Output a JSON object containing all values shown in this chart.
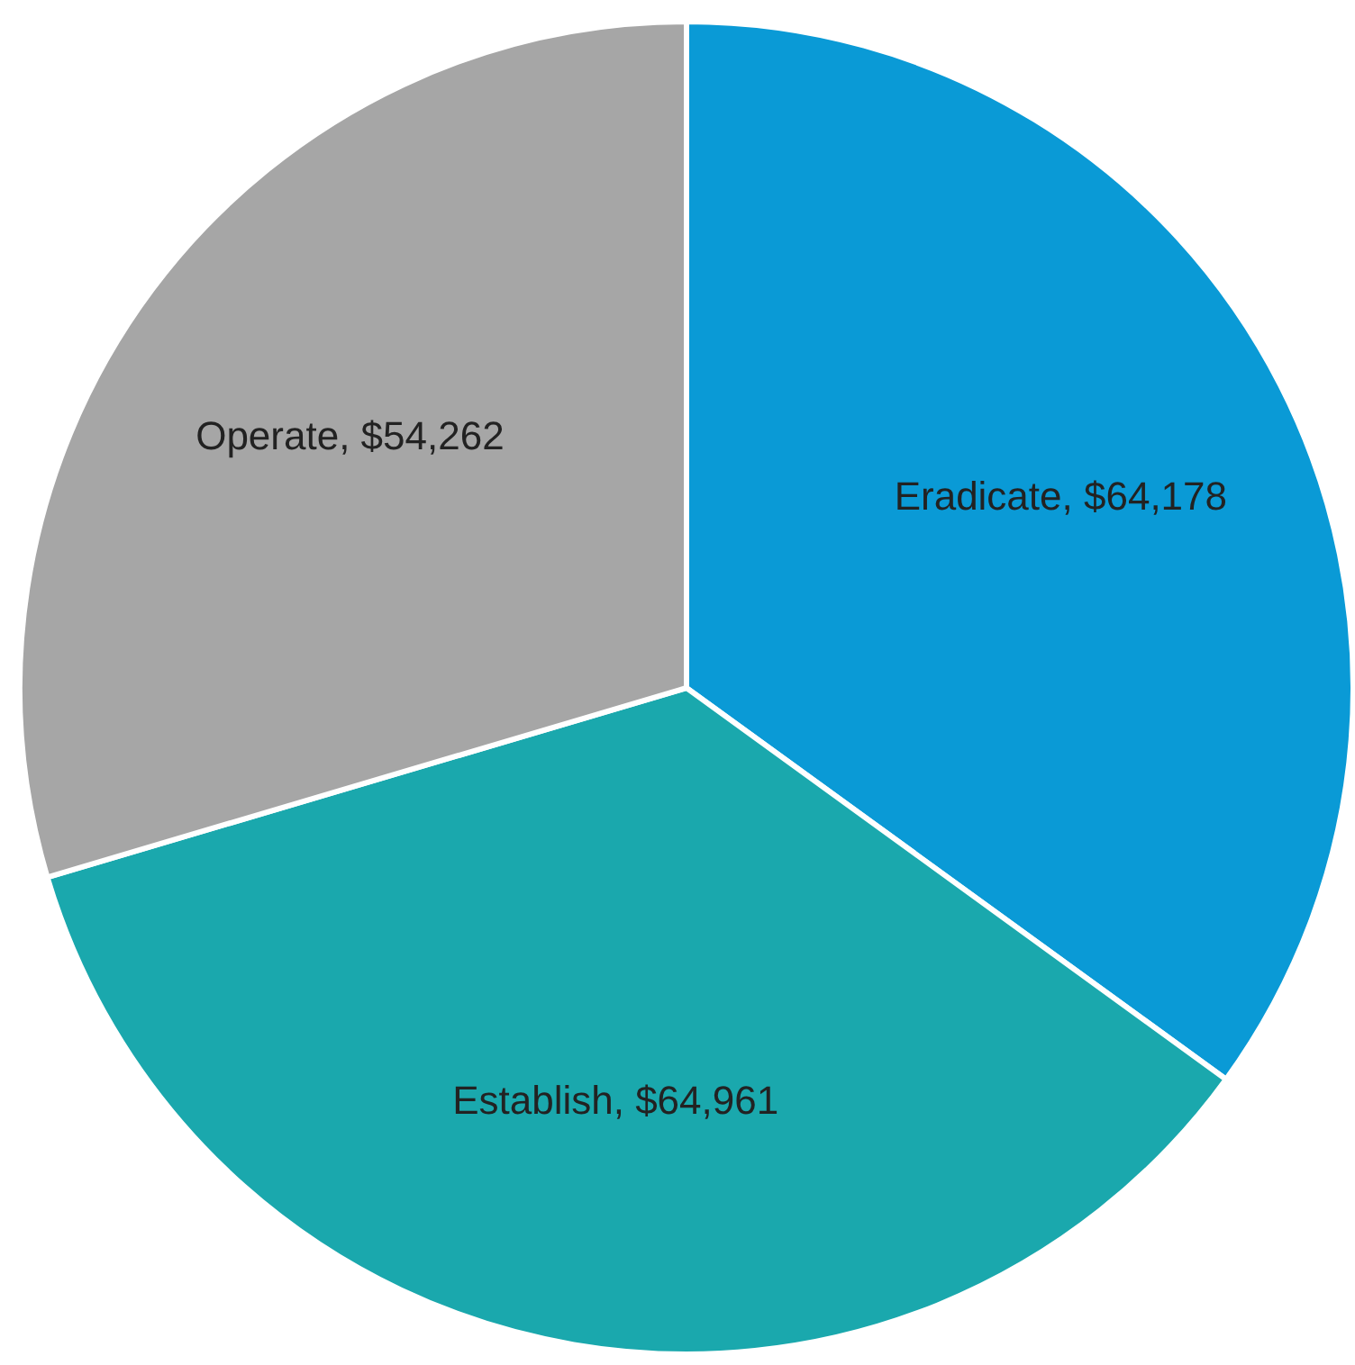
{
  "chart_data": {
    "type": "pie",
    "categories": [
      "Eradicate",
      "Establish",
      "Operate"
    ],
    "values": [
      64178,
      64961,
      54262
    ],
    "colors": [
      "#0a9ad6",
      "#1aa8ad",
      "#a6a6a6"
    ],
    "value_labels": [
      "$64,178",
      "$64,961",
      "$54,262"
    ]
  }
}
